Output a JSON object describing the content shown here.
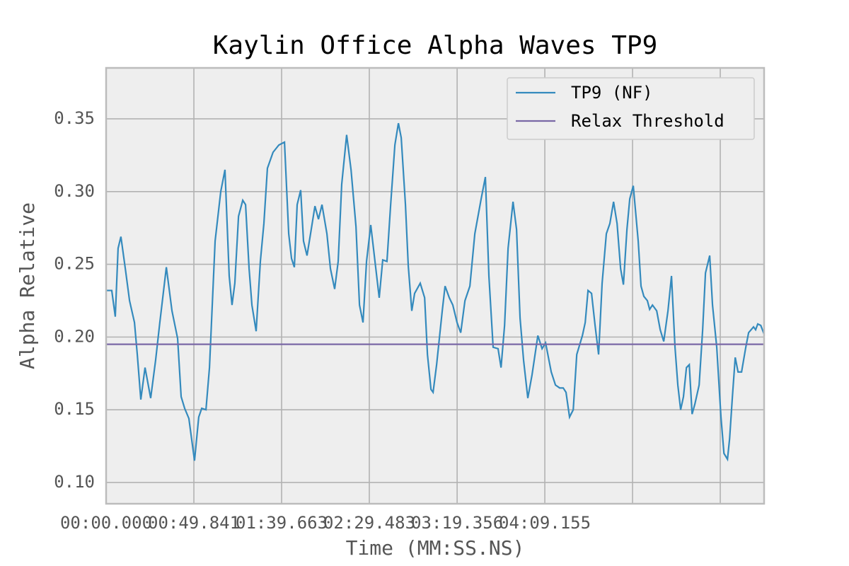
{
  "chart_data": {
    "type": "line",
    "title": "Kaylin Office Alpha Waves TP9",
    "x_label": "Time (MM:SS.NS)",
    "y_label": "Alpha Relative",
    "xlim": [
      0,
      373.7
    ],
    "ylim": [
      0.0854,
      0.385
    ],
    "xticks": [
      {
        "value": 0,
        "label": "00:00.000"
      },
      {
        "value": 49.841,
        "label": "00:49.841"
      },
      {
        "value": 99.663,
        "label": "01:39.663"
      },
      {
        "value": 149.483,
        "label": "02:29.483"
      },
      {
        "value": 199.356,
        "label": "03:19.356"
      },
      {
        "value": 249.155,
        "label": "04:09.155"
      },
      {
        "value": 298.99,
        "label": null
      },
      {
        "value": 348.8,
        "label": null
      }
    ],
    "yticks": [
      {
        "value": 0.1,
        "label": "0.10"
      },
      0.15,
      {
        "value": 0.2,
        "label": "0.20"
      },
      0.25,
      {
        "value": 0.3,
        "label": "0.30"
      },
      0.35
    ],
    "grid": true,
    "legend": "upper right",
    "x": [
      0,
      3.2,
      5.2,
      6.8,
      8.4,
      10.9,
      13.3,
      16.1,
      17.7,
      19.7,
      22.1,
      25.3,
      28.1,
      30.5,
      34.2,
      37.4,
      40.6,
      42.6,
      44.6,
      47.0,
      50.2,
      52.6,
      54.3,
      56.7,
      58.7,
      61.9,
      65.1,
      67.5,
      69.9,
      71.5,
      73.1,
      75.2,
      77.6,
      79.2,
      81.2,
      82.8,
      85.2,
      87.6,
      89.6,
      91.6,
      94.8,
      98.1,
      101.3,
      103.7,
      105.3,
      106.9,
      108.5,
      110.5,
      112.1,
      114.1,
      116.1,
      118.6,
      120.6,
      122.6,
      125.4,
      127.4,
      129.8,
      131.8,
      133.8,
      136.6,
      139.1,
      141.9,
      143.9,
      145.9,
      147.9,
      150.3,
      152.7,
      155.1,
      157.1,
      159.5,
      161.6,
      164.0,
      166.0,
      167.6,
      170.0,
      171.6,
      173.6,
      175.2,
      178.4,
      180.9,
      182.5,
      184.5,
      185.7,
      187.7,
      190.9,
      192.5,
      194.9,
      196.9,
      199.3,
      201.4,
      203.8,
      206.6,
      209.4,
      213.0,
      215.4,
      217.4,
      219.8,
      222.6,
      224.3,
      226.3,
      228.3,
      231.1,
      233.1,
      235.1,
      237.1,
      239.5,
      241.9,
      245.2,
      247.6,
      249.6,
      252.8,
      255.2,
      257.6,
      259.6,
      261.2,
      263.2,
      265.3,
      267.3,
      270.5,
      272.1,
      273.7,
      275.7,
      277.7,
      279.7,
      281.7,
      284.1,
      286.1,
      288.2,
      290.2,
      292.2,
      293.8,
      295.8,
      297.4,
      299.4,
      302.2,
      303.8,
      305.4,
      307.4,
      308.7,
      310.3,
      312.7,
      314.7,
      316.7,
      319.1,
      321.1,
      323.1,
      324.7,
      326.3,
      327.9,
      329.6,
      331.2,
      332.8,
      334.4,
      336.8,
      338.8,
      340.4,
      342.8,
      344.4,
      346.8,
      349.2,
      350.9,
      352.9,
      354.1,
      355.7,
      357.3,
      358.9,
      360.9,
      363.3,
      364.9,
      367.7,
      368.9,
      370.1,
      371.8,
      373.7
    ],
    "series": [
      {
        "name": "TP9 (NF)",
        "color": "#348abd",
        "values": [
          0.232,
          0.232,
          0.214,
          0.261,
          0.269,
          0.247,
          0.225,
          0.21,
          0.188,
          0.157,
          0.179,
          0.158,
          0.184,
          0.21,
          0.248,
          0.218,
          0.199,
          0.159,
          0.151,
          0.144,
          0.115,
          0.145,
          0.151,
          0.15,
          0.179,
          0.266,
          0.3,
          0.315,
          0.242,
          0.222,
          0.237,
          0.283,
          0.294,
          0.291,
          0.247,
          0.222,
          0.204,
          0.252,
          0.278,
          0.316,
          0.327,
          0.332,
          0.334,
          0.271,
          0.254,
          0.248,
          0.291,
          0.301,
          0.266,
          0.256,
          0.271,
          0.29,
          0.281,
          0.291,
          0.271,
          0.247,
          0.233,
          0.252,
          0.305,
          0.339,
          0.315,
          0.276,
          0.222,
          0.21,
          0.252,
          0.277,
          0.252,
          0.227,
          0.253,
          0.252,
          0.291,
          0.332,
          0.347,
          0.337,
          0.291,
          0.249,
          0.218,
          0.23,
          0.237,
          0.227,
          0.188,
          0.164,
          0.162,
          0.181,
          0.218,
          0.235,
          0.227,
          0.222,
          0.21,
          0.203,
          0.225,
          0.235,
          0.271,
          0.295,
          0.31,
          0.242,
          0.193,
          0.192,
          0.179,
          0.208,
          0.261,
          0.293,
          0.274,
          0.213,
          0.184,
          0.158,
          0.174,
          0.201,
          0.192,
          0.196,
          0.176,
          0.167,
          0.165,
          0.165,
          0.162,
          0.145,
          0.15,
          0.188,
          0.201,
          0.21,
          0.232,
          0.23,
          0.208,
          0.188,
          0.237,
          0.271,
          0.278,
          0.293,
          0.278,
          0.247,
          0.236,
          0.274,
          0.295,
          0.304,
          0.266,
          0.235,
          0.228,
          0.225,
          0.219,
          0.222,
          0.218,
          0.205,
          0.197,
          0.218,
          0.242,
          0.193,
          0.167,
          0.15,
          0.159,
          0.179,
          0.181,
          0.147,
          0.154,
          0.167,
          0.205,
          0.244,
          0.256,
          0.222,
          0.193,
          0.145,
          0.12,
          0.116,
          0.13,
          0.159,
          0.186,
          0.176,
          0.176,
          0.193,
          0.203,
          0.207,
          0.205,
          0.209,
          0.208,
          0.202
        ]
      }
    ],
    "threshold": {
      "name": "Relax Threshold",
      "color": "#7a68a6",
      "value": 0.195
    }
  }
}
